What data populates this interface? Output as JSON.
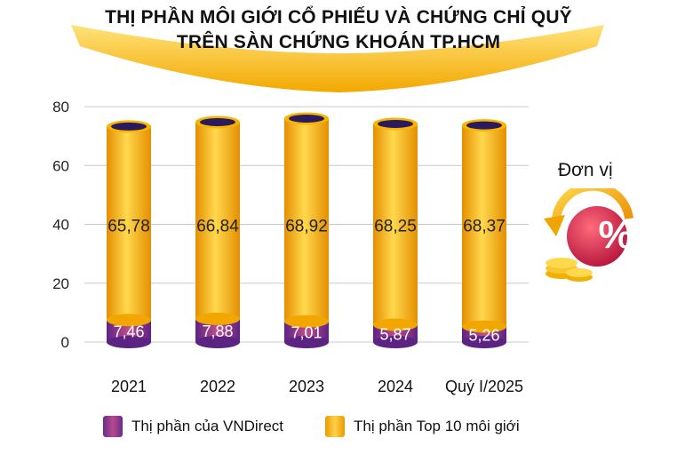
{
  "title_line1": "THỊ PHẦN MÔI GIỚI CỔ PHIẾU VÀ CHỨNG CHỈ QUỸ",
  "title_line2": "TRÊN SÀN CHỨNG KHOÁN TP.HCM",
  "unit": "Đơn vị",
  "unit_symbol": "%",
  "legend": {
    "vndirect": "Thị phần của VNDirect",
    "top10": "Thị phần Top 10 môi giới"
  },
  "colors": {
    "banner": "#f7b500",
    "top10": "#f5b400",
    "vndirect": "#9b3c8c",
    "percent_circle": "#d7304f"
  },
  "chart_data": {
    "type": "bar",
    "stacked": true,
    "categories": [
      "2021",
      "2022",
      "2023",
      "2024",
      "Quý I/2025"
    ],
    "series": [
      {
        "name": "Thị phần của VNDirect",
        "values": [
          7.46,
          7.88,
          7.01,
          5.87,
          5.26
        ],
        "labels": [
          "7,46",
          "7,88",
          "7,01",
          "5,87",
          "5,26"
        ]
      },
      {
        "name": "Thị phần Top 10 môi giới",
        "values": [
          65.78,
          66.84,
          68.92,
          68.25,
          68.37
        ],
        "labels": [
          "65,78",
          "66,84",
          "68,92",
          "68,25",
          "68,37"
        ]
      }
    ],
    "yticks": [
      "0",
      "20",
      "40",
      "60",
      "80"
    ],
    "ylim": [
      0,
      80
    ],
    "grid": true,
    "legend_position": "bottom"
  }
}
